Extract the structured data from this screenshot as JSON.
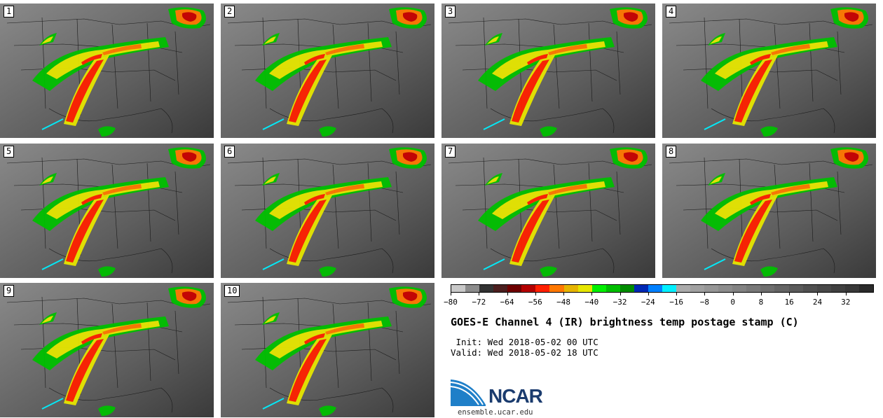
{
  "title": "GOES-E Channel 4 (IR) brightness temp postage stamp (C)",
  "init_line": " Init: Wed 2018-05-02 00 UTC",
  "valid_line": "Valid: Wed 2018-05-02 18 UTC",
  "logo_text": "NCAR",
  "website": "ensemble.ucar.edu",
  "panels": [
    "1",
    "2",
    "3",
    "4",
    "5",
    "6",
    "7",
    "8",
    "9",
    "10"
  ],
  "colorbar": {
    "min": -80,
    "max": 40,
    "step": 4,
    "tick_labels": [
      "−80",
      "−72",
      "−64",
      "−56",
      "−48",
      "−40",
      "−32",
      "−24",
      "−16",
      "−8",
      "0",
      "8",
      "16",
      "24",
      "32"
    ],
    "tick_values": [
      -80,
      -72,
      -64,
      -56,
      -48,
      -40,
      -32,
      -24,
      -16,
      -8,
      0,
      8,
      16,
      24,
      32
    ],
    "colors": [
      "#c8c8c8",
      "#8c8c8c",
      "#323232",
      "#4b1e1e",
      "#6e0000",
      "#b40000",
      "#ff2000",
      "#ff7800",
      "#e6b400",
      "#e6e600",
      "#00f000",
      "#00be00",
      "#008c00",
      "#0028b4",
      "#0080ff",
      "#00f0ff",
      "#aaaaaa",
      "#a0a0a0",
      "#969696",
      "#8c8c8c",
      "#828282",
      "#787878",
      "#6e6e6e",
      "#646464",
      "#5a5a5a",
      "#505050",
      "#484848",
      "#404040",
      "#383838",
      "#2a2a2a"
    ]
  }
}
